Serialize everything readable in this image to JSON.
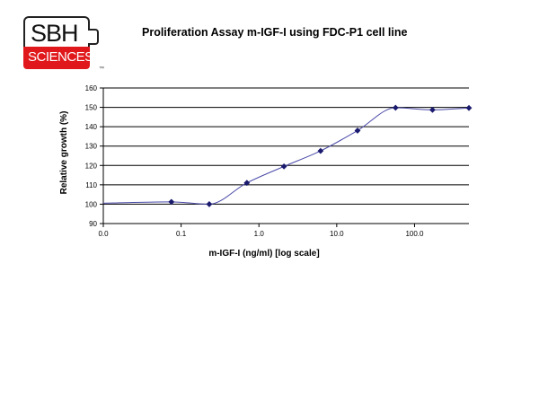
{
  "logo": {
    "top_text": "SBH",
    "bottom_text": "SCIENCES",
    "trademark": "™"
  },
  "chart_data": {
    "type": "line",
    "title": "Proliferation Assay m-IGF-I using FDC-P1 cell line",
    "xlabel": "m-IGF-I (ng/ml) [log scale]",
    "ylabel": "Relative growth (%)",
    "x_scale": "log",
    "x_ticks": [
      "0.0",
      "0.1",
      "1.0",
      "10.0",
      "100.0"
    ],
    "x_tick_values": [
      0.01,
      0.1,
      1,
      10,
      100
    ],
    "xlim": [
      0.01,
      500
    ],
    "ylim": [
      90,
      160
    ],
    "y_ticks": [
      90,
      100,
      110,
      120,
      130,
      140,
      150,
      160
    ],
    "grid": "horizontal",
    "line_color": "#4a4aa8",
    "marker_color": "#1a1a6e",
    "series": [
      {
        "x": [
          0.01,
          0.075,
          0.23,
          0.7,
          2.1,
          6.2,
          18.5,
          57,
          170,
          500
        ],
        "y": [
          100.5,
          101.2,
          100,
          111,
          119.5,
          127.5,
          138,
          149.8,
          148.7,
          149.7
        ],
        "markers": [
          false,
          true,
          true,
          true,
          true,
          true,
          true,
          true,
          true,
          true
        ]
      }
    ]
  }
}
